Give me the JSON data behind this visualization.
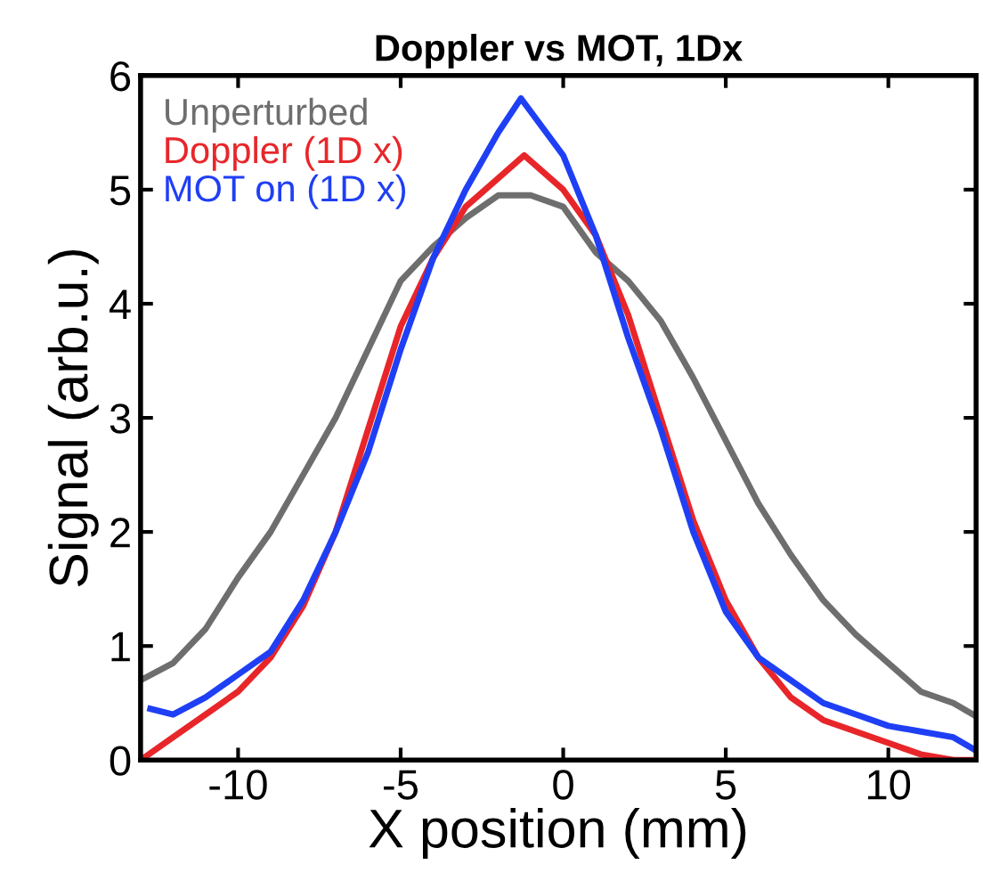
{
  "chart_data": {
    "type": "line",
    "title": "Doppler vs MOT, 1Dx",
    "xlabel": "X position (mm)",
    "ylabel": "Signal (arb.u.)",
    "xlim": [
      -13,
      12.7
    ],
    "ylim": [
      0,
      6
    ],
    "xticks": [
      -10,
      -5,
      0,
      5,
      10
    ],
    "yticks": [
      0,
      1,
      2,
      3,
      4,
      5,
      6
    ],
    "grid": false,
    "legend": "top left",
    "series": [
      {
        "name": "Unperturbed",
        "color": "#6e6e6e",
        "x": [
          -13,
          -12,
          -11,
          -10,
          -9,
          -8,
          -7,
          -6,
          -5,
          -4,
          -3,
          -2,
          -1,
          0,
          1,
          2,
          3,
          4,
          5,
          6,
          7,
          8,
          9,
          10,
          11,
          12,
          12.6
        ],
        "values": [
          0.7,
          0.85,
          1.15,
          1.6,
          2.0,
          2.5,
          3.0,
          3.6,
          4.2,
          4.5,
          4.75,
          4.95,
          4.95,
          4.85,
          4.45,
          4.2,
          3.85,
          3.35,
          2.8,
          2.25,
          1.8,
          1.4,
          1.1,
          0.85,
          0.6,
          0.5,
          0.4
        ]
      },
      {
        "name": "Doppler (1D x)",
        "color": "#e8262a",
        "x": [
          -13,
          -12,
          -11,
          -10,
          -9,
          -8,
          -7,
          -6,
          -5,
          -4,
          -3,
          -2,
          -1.2,
          0,
          1,
          2,
          3,
          4,
          5,
          6,
          7,
          8,
          9,
          10,
          11,
          12,
          12.6
        ],
        "values": [
          0.0,
          0.2,
          0.4,
          0.6,
          0.9,
          1.35,
          2.0,
          2.9,
          3.8,
          4.4,
          4.85,
          5.1,
          5.3,
          5.0,
          4.6,
          3.9,
          3.0,
          2.1,
          1.4,
          0.9,
          0.55,
          0.35,
          0.25,
          0.15,
          0.05,
          0.0,
          0.0
        ]
      },
      {
        "name": "MOT on (1D x)",
        "color": "#1f3ff5",
        "x": [
          -12.7,
          -12,
          -11,
          -10,
          -9,
          -8,
          -7,
          -6,
          -5,
          -4,
          -3,
          -2,
          -1.3,
          0,
          1,
          2,
          3,
          4,
          5,
          6,
          7,
          8,
          9,
          10,
          11,
          12,
          12.6
        ],
        "values": [
          0.45,
          0.4,
          0.55,
          0.75,
          0.95,
          1.4,
          2.0,
          2.7,
          3.6,
          4.4,
          5.0,
          5.5,
          5.8,
          5.3,
          4.6,
          3.7,
          2.9,
          2.0,
          1.3,
          0.9,
          0.7,
          0.5,
          0.4,
          0.3,
          0.25,
          0.2,
          0.1
        ]
      }
    ]
  }
}
